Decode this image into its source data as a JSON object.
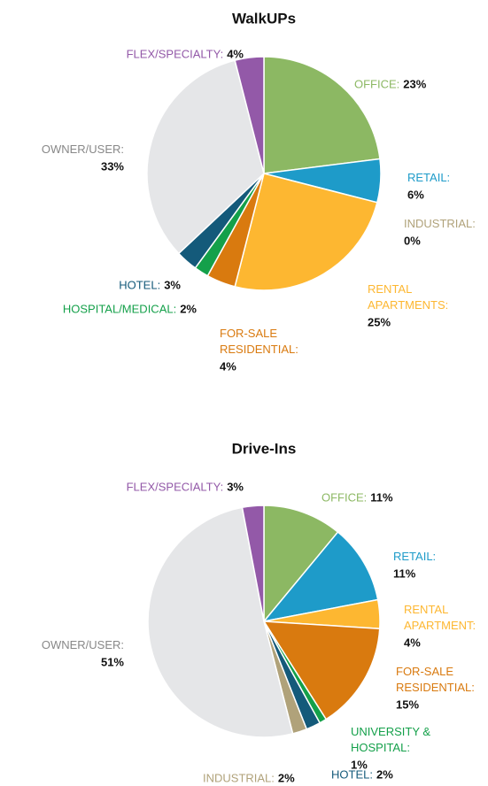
{
  "chart_data": [
    {
      "type": "pie",
      "title": "WalkUPs",
      "categories": [
        "OFFICE:",
        "RETAIL:",
        "INDUSTRIAL:",
        "RENTAL APARTMENTS:",
        "FOR-SALE RESIDENTIAL:",
        "HOSPITAL/MEDICAL:",
        "HOTEL:",
        "OWNER/USER:",
        "FLEX/SPECIALTY:"
      ],
      "values": [
        23,
        6,
        0,
        25,
        4,
        2,
        3,
        33,
        4
      ],
      "value_labels": [
        "23%",
        "6%",
        "0%",
        "25%",
        "4%",
        "2%",
        "3%",
        "33%",
        "4%"
      ],
      "colors": [
        "#8cb863",
        "#1e9bc9",
        "#b0a27a",
        "#fdb731",
        "#d97a0f",
        "#14a04a",
        "#145a7a",
        "#e5e6e8",
        "#9359a8"
      ]
    },
    {
      "type": "pie",
      "title": "Drive-Ins",
      "categories": [
        "OFFICE:",
        "RETAIL:",
        "RENTAL APARTMENT:",
        "FOR-SALE RESIDENTIAL:",
        "UNIVERSITY & HOSPITAL:",
        "HOTEL:",
        "INDUSTRIAL:",
        "OWNER/USER:",
        "FLEX/SPECIALTY:"
      ],
      "values": [
        11,
        11,
        4,
        15,
        1,
        2,
        2,
        51,
        3
      ],
      "value_labels": [
        "11%",
        "11%",
        "4%",
        "15%",
        "1%",
        "2%",
        "2%",
        "51%",
        "3%"
      ],
      "colors": [
        "#8cb863",
        "#1e9bc9",
        "#fdb731",
        "#d97a0f",
        "#14a04a",
        "#145a7a",
        "#b0a27a",
        "#e5e6e8",
        "#9359a8"
      ]
    }
  ]
}
